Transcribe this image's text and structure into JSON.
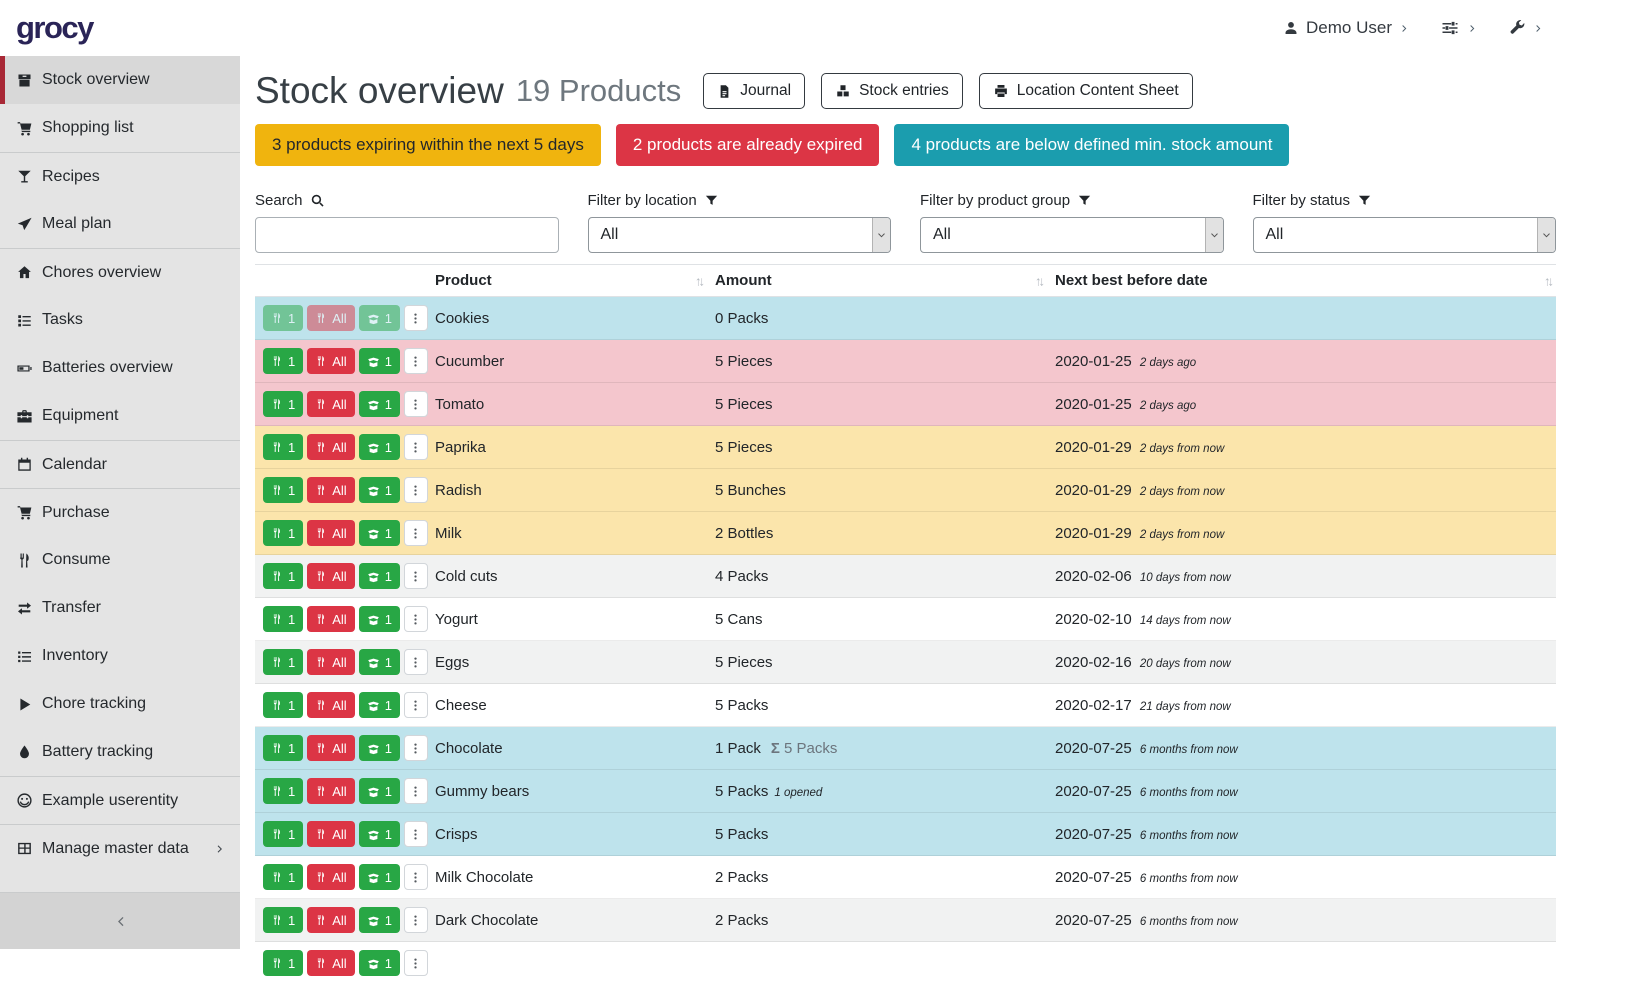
{
  "topbar": {
    "logo": "grocy",
    "user": {
      "label": "Demo User"
    }
  },
  "sidebar": {
    "items": [
      {
        "label": "Stock overview",
        "icon": "box",
        "active": true
      },
      {
        "label": "Shopping list",
        "icon": "cart"
      },
      {
        "label": "Recipes",
        "icon": "cocktail",
        "group_start": true
      },
      {
        "label": "Meal plan",
        "icon": "plane"
      },
      {
        "label": "Chores overview",
        "icon": "home",
        "group_start": true
      },
      {
        "label": "Tasks",
        "icon": "tasks"
      },
      {
        "label": "Batteries overview",
        "icon": "battery"
      },
      {
        "label": "Equipment",
        "icon": "toolbox"
      },
      {
        "label": "Calendar",
        "icon": "calendar",
        "group_start": true
      },
      {
        "label": "Purchase",
        "icon": "cart",
        "group_start": true
      },
      {
        "label": "Consume",
        "icon": "utensils"
      },
      {
        "label": "Transfer",
        "icon": "transfer"
      },
      {
        "label": "Inventory",
        "icon": "list"
      },
      {
        "label": "Chore tracking",
        "icon": "play"
      },
      {
        "label": "Battery tracking",
        "icon": "drop"
      },
      {
        "label": "Example userentity",
        "icon": "smiley",
        "group_start": true
      },
      {
        "label": "Manage master data",
        "icon": "grid",
        "group_start": true,
        "has_submenu": true
      }
    ]
  },
  "header": {
    "title": "Stock overview",
    "subtitle": "19 Products",
    "buttons": [
      {
        "label": "Journal",
        "icon": "file"
      },
      {
        "label": "Stock entries",
        "icon": "cubes"
      },
      {
        "label": "Location Content Sheet",
        "icon": "print"
      }
    ]
  },
  "alerts": [
    {
      "text": "3 products expiring within the next 5 days",
      "type": "warning",
      "bg": "#f0b40e"
    },
    {
      "text": "2 products are already expired",
      "type": "danger",
      "bg": "#dc3545"
    },
    {
      "text": "4 products are below defined min. stock amount",
      "type": "info",
      "bg": "#1b9dae"
    }
  ],
  "filters": [
    {
      "label": "Search",
      "icon": "search",
      "control": "input",
      "value": ""
    },
    {
      "label": "Filter by location",
      "icon": "filter",
      "control": "select",
      "value": "All"
    },
    {
      "label": "Filter by product group",
      "icon": "filter",
      "control": "select",
      "value": "All"
    },
    {
      "label": "Filter by status",
      "icon": "filter",
      "control": "select",
      "value": "All"
    }
  ],
  "table": {
    "columns": [
      "Product",
      "Amount",
      "Next best before date"
    ],
    "sum_prefix": "Σ",
    "actions": {
      "consume_one": "1",
      "consume_all": "All",
      "open_one": "1"
    },
    "status_colors": {
      "info": "#bee3ec",
      "danger": "#f4c6cd",
      "warning": "#fbe5ab"
    },
    "rows": [
      {
        "product": "Cookies",
        "amount": "0 Packs",
        "date": "",
        "date_relative": "",
        "status": "info",
        "actions_disabled": true
      },
      {
        "product": "Cucumber",
        "amount": "5 Pieces",
        "date": "2020-01-25",
        "date_relative": "2 days ago",
        "status": "danger"
      },
      {
        "product": "Tomato",
        "amount": "5 Pieces",
        "date": "2020-01-25",
        "date_relative": "2 days ago",
        "status": "danger"
      },
      {
        "product": "Paprika",
        "amount": "5 Pieces",
        "date": "2020-01-29",
        "date_relative": "2 days from now",
        "status": "warning"
      },
      {
        "product": "Radish",
        "amount": "5 Bunches",
        "date": "2020-01-29",
        "date_relative": "2 days from now",
        "status": "warning"
      },
      {
        "product": "Milk",
        "amount": "2 Bottles",
        "date": "2020-01-29",
        "date_relative": "2 days from now",
        "status": "warning"
      },
      {
        "product": "Cold cuts",
        "amount": "4 Packs",
        "date": "2020-02-06",
        "date_relative": "10 days from now",
        "status": ""
      },
      {
        "product": "Yogurt",
        "amount": "5 Cans",
        "date": "2020-02-10",
        "date_relative": "14 days from now",
        "status": ""
      },
      {
        "product": "Eggs",
        "amount": "5 Pieces",
        "date": "2020-02-16",
        "date_relative": "20 days from now",
        "status": ""
      },
      {
        "product": "Cheese",
        "amount": "5 Packs",
        "date": "2020-02-17",
        "date_relative": "21 days from now",
        "status": ""
      },
      {
        "product": "Chocolate",
        "amount": "1 Pack",
        "amount_sum": "5 Packs",
        "date": "2020-07-25",
        "date_relative": "6 months from now",
        "status": "info"
      },
      {
        "product": "Gummy bears",
        "amount": "5 Packs",
        "amount_opened": "1 opened",
        "date": "2020-07-25",
        "date_relative": "6 months from now",
        "status": "info"
      },
      {
        "product": "Crisps",
        "amount": "5 Packs",
        "date": "2020-07-25",
        "date_relative": "6 months from now",
        "status": "info"
      },
      {
        "product": "Milk Chocolate",
        "amount": "2 Packs",
        "date": "2020-07-25",
        "date_relative": "6 months from now",
        "status": ""
      },
      {
        "product": "Dark Chocolate",
        "amount": "2 Packs",
        "date": "2020-07-25",
        "date_relative": "6 months from now",
        "status": ""
      },
      {
        "product": "",
        "amount": "",
        "date": "",
        "date_relative": "",
        "status": "",
        "partial": true
      }
    ]
  }
}
